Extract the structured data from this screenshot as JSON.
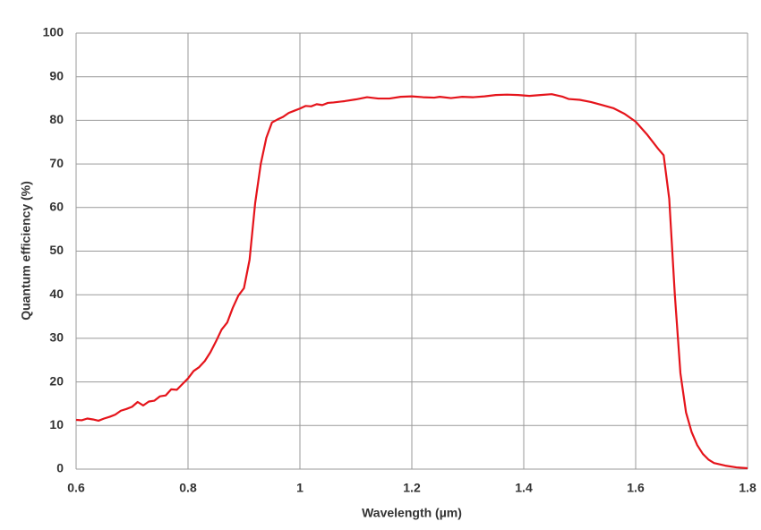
{
  "chart_data": {
    "type": "line",
    "xlabel": "Wavelength (µm)",
    "ylabel": "Quantum efficiency (%)",
    "xlim": [
      0.6,
      1.8
    ],
    "xticks": [
      0.6,
      0.8,
      1,
      1.2,
      1.4,
      1.6,
      1.8
    ],
    "ylim": [
      0,
      100
    ],
    "yticks": [
      0,
      10,
      20,
      30,
      40,
      50,
      60,
      70,
      80,
      90,
      100
    ],
    "grid": true,
    "x": [
      0.6,
      0.61,
      0.62,
      0.63,
      0.64,
      0.65,
      0.66,
      0.67,
      0.68,
      0.69,
      0.7,
      0.71,
      0.72,
      0.73,
      0.74,
      0.75,
      0.76,
      0.77,
      0.78,
      0.79,
      0.8,
      0.81,
      0.82,
      0.83,
      0.84,
      0.85,
      0.86,
      0.87,
      0.88,
      0.89,
      0.9,
      0.91,
      0.92,
      0.93,
      0.94,
      0.95,
      0.96,
      0.97,
      0.98,
      0.99,
      1.0,
      1.01,
      1.02,
      1.03,
      1.04,
      1.05,
      1.06,
      1.08,
      1.1,
      1.12,
      1.14,
      1.16,
      1.18,
      1.2,
      1.22,
      1.24,
      1.25,
      1.27,
      1.29,
      1.31,
      1.33,
      1.35,
      1.37,
      1.39,
      1.41,
      1.43,
      1.45,
      1.47,
      1.48,
      1.5,
      1.52,
      1.54,
      1.56,
      1.58,
      1.6,
      1.62,
      1.64,
      1.65,
      1.66,
      1.67,
      1.68,
      1.69,
      1.7,
      1.71,
      1.72,
      1.73,
      1.74,
      1.76,
      1.78,
      1.8
    ],
    "series": [
      {
        "color": "#e5141b",
        "values": [
          11.3,
          11.2,
          11.6,
          11.4,
          11.1,
          11.6,
          12,
          12.5,
          13.4,
          13.8,
          14.3,
          15.4,
          14.6,
          15.5,
          15.7,
          16.7,
          16.9,
          18.3,
          18.2,
          19.5,
          20.8,
          22.5,
          23.4,
          24.8,
          26.8,
          29.3,
          32,
          33.6,
          37,
          39.8,
          41.5,
          48,
          61,
          70,
          76,
          79.5,
          80.2,
          80.8,
          81.7,
          82.2,
          82.7,
          83.3,
          83.2,
          83.7,
          83.5,
          84,
          84.1,
          84.4,
          84.8,
          85.3,
          85,
          85,
          85.4,
          85.5,
          85.3,
          85.2,
          85.4,
          85.1,
          85.4,
          85.3,
          85.5,
          85.8,
          85.9,
          85.8,
          85.6,
          85.8,
          86,
          85.4,
          84.9,
          84.7,
          84.2,
          83.5,
          82.8,
          81.5,
          79.7,
          76.8,
          73.5,
          72,
          62,
          40,
          22,
          13,
          8.5,
          5.5,
          3.5,
          2.2,
          1.4,
          0.8,
          0.4,
          0.2
        ]
      }
    ]
  }
}
